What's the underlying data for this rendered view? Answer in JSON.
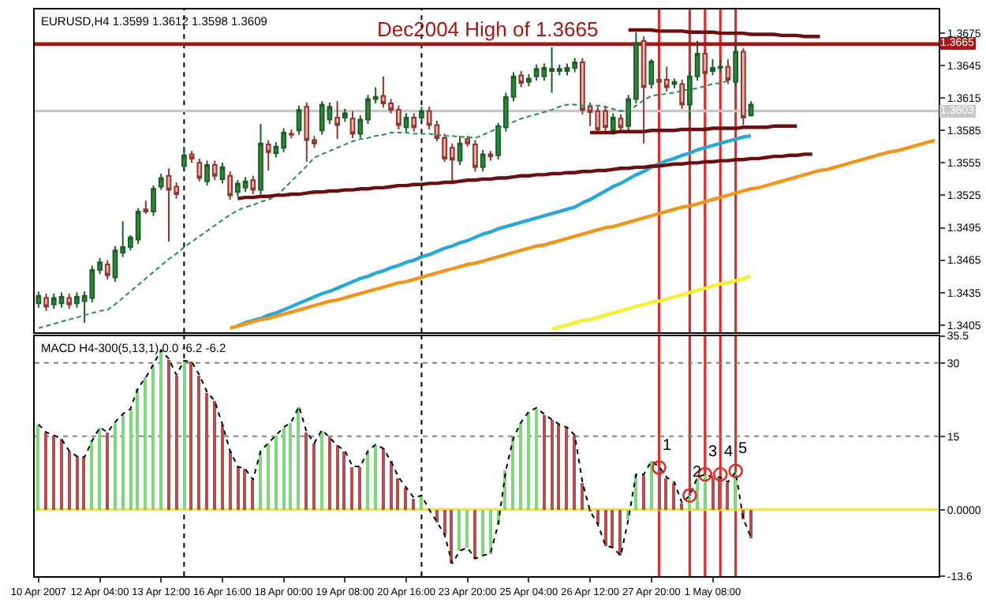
{
  "chart_data": [
    {
      "type": "candlestick",
      "title": "EURUSD,H4 1.3599 1.3612 1.3598 1.3609",
      "categories": [
        null,
        null,
        null,
        null,
        null,
        null,
        null,
        null,
        null,
        null,
        null,
        null,
        null,
        null,
        null,
        null,
        null,
        null,
        null,
        null,
        null,
        null,
        null,
        null,
        null,
        null,
        null,
        null,
        null,
        null,
        null,
        null,
        null,
        null,
        null,
        null,
        null,
        null,
        null,
        null,
        null,
        null,
        null,
        null,
        null,
        null,
        null,
        null,
        null,
        null,
        null,
        null,
        null,
        null,
        null,
        null,
        null,
        null,
        null,
        null,
        null,
        null,
        null,
        null,
        null,
        null,
        null,
        null,
        null,
        null,
        null,
        null,
        null,
        null,
        null,
        null,
        null,
        null,
        null,
        null,
        null,
        null,
        null,
        null,
        null,
        null,
        null,
        null,
        null,
        null,
        null,
        null,
        null,
        null,
        null,
        null,
        null,
        null,
        null,
        null,
        null,
        null,
        null,
        null,
        null,
        null,
        null,
        null,
        null,
        null,
        null,
        null,
        null,
        null,
        null,
        null,
        null,
        null
      ],
      "ohlc": [
        [
          1.3425,
          1.3436,
          1.3421,
          1.3432
        ],
        [
          1.343,
          1.3434,
          1.3418,
          1.3422
        ],
        [
          1.3424,
          1.3434,
          1.342,
          1.343
        ],
        [
          1.3425,
          1.3435,
          1.3421,
          1.3431
        ],
        [
          1.343,
          1.3434,
          1.342,
          1.3424
        ],
        [
          1.3425,
          1.3435,
          1.3421,
          1.3431
        ],
        [
          1.3427,
          1.3436,
          1.3407,
          1.3432
        ],
        [
          1.343,
          1.346,
          1.3426,
          1.3456
        ],
        [
          1.3456,
          1.3467,
          1.3452,
          1.3463
        ],
        [
          1.3461,
          1.3465,
          1.3447,
          1.3451
        ],
        [
          1.3449,
          1.3478,
          1.3445,
          1.3474
        ],
        [
          1.3472,
          1.3501,
          1.3468,
          1.3477
        ],
        [
          1.3477,
          1.3488,
          1.3474,
          1.3486
        ],
        [
          1.3484,
          1.3513,
          1.348,
          1.351
        ],
        [
          1.3512,
          1.352,
          1.3508,
          1.351
        ],
        [
          1.351,
          1.3534,
          1.3506,
          1.3531
        ],
        [
          1.3533,
          1.3545,
          1.353,
          1.3541
        ],
        [
          1.3543,
          1.355,
          1.3482,
          1.353
        ],
        [
          1.3533,
          1.3537,
          1.3522,
          1.3526
        ],
        [
          1.3552,
          1.357,
          1.3549,
          1.3562
        ],
        [
          1.3563,
          1.3566,
          1.3555,
          1.3559
        ],
        [
          1.3555,
          1.3559,
          1.3538,
          1.3541
        ],
        [
          1.3538,
          1.3557,
          1.3534,
          1.3553
        ],
        [
          1.3553,
          1.3557,
          1.3539,
          1.3543
        ],
        [
          1.354,
          1.3555,
          1.3536,
          1.3551
        ],
        [
          1.3543,
          1.3547,
          1.3521,
          1.3525
        ],
        [
          1.3528,
          1.3539,
          1.3524,
          1.3536
        ],
        [
          1.3532,
          1.3542,
          1.3528,
          1.3538
        ],
        [
          1.3539,
          1.3543,
          1.3526,
          1.353
        ],
        [
          1.353,
          1.3591,
          1.3526,
          1.3573
        ],
        [
          1.3572,
          1.3576,
          1.3548,
          1.3565
        ],
        [
          1.3564,
          1.3574,
          1.356,
          1.357
        ],
        [
          1.3569,
          1.3587,
          1.3565,
          1.3583
        ],
        [
          1.3582,
          1.3586,
          1.3578,
          1.3581
        ],
        [
          1.3585,
          1.3608,
          1.3581,
          1.3604
        ],
        [
          1.3607,
          1.3611,
          1.3556,
          1.3576
        ],
        [
          1.3576,
          1.358,
          1.3569,
          1.3573
        ],
        [
          1.3585,
          1.3612,
          1.3581,
          1.3609
        ],
        [
          1.3595,
          1.3611,
          1.3591,
          1.3607
        ],
        [
          1.3597,
          1.3612,
          1.3577,
          1.359
        ],
        [
          1.3597,
          1.3605,
          1.3593,
          1.3601
        ],
        [
          1.3596,
          1.3603,
          1.3578,
          1.3582
        ],
        [
          1.3582,
          1.3599,
          1.3578,
          1.3595
        ],
        [
          1.3595,
          1.3618,
          1.3591,
          1.3614
        ],
        [
          1.3614,
          1.3625,
          1.361,
          1.3616
        ],
        [
          1.3617,
          1.3635,
          1.3606,
          1.361
        ],
        [
          1.361,
          1.3614,
          1.3601,
          1.3604
        ],
        [
          1.3604,
          1.3608,
          1.3586,
          1.359
        ],
        [
          1.3588,
          1.3601,
          1.3584,
          1.3597
        ],
        [
          1.3597,
          1.3601,
          1.3584,
          1.3588
        ],
        [
          1.3597,
          1.3607,
          1.3593,
          1.3603
        ],
        [
          1.3603,
          1.3607,
          1.3586,
          1.359
        ],
        [
          1.359,
          1.3594,
          1.3575,
          1.3578
        ],
        [
          1.3578,
          1.3582,
          1.3556,
          1.3559
        ],
        [
          1.3569,
          1.3573,
          1.3538,
          1.3558
        ],
        [
          1.3557,
          1.358,
          1.3553,
          1.3573
        ],
        [
          1.3577,
          1.358,
          1.357,
          1.3573
        ],
        [
          1.3572,
          1.3576,
          1.3547,
          1.3551
        ],
        [
          1.3551,
          1.3567,
          1.3547,
          1.3563
        ],
        [
          1.3563,
          1.3566,
          1.3557,
          1.3561
        ],
        [
          1.3562,
          1.3592,
          1.3558,
          1.3589
        ],
        [
          1.3588,
          1.362,
          1.3584,
          1.3616
        ],
        [
          1.3616,
          1.3639,
          1.3612,
          1.3635
        ],
        [
          1.3636,
          1.364,
          1.3625,
          1.3629
        ],
        [
          1.363,
          1.3637,
          1.3626,
          1.3633
        ],
        [
          1.3635,
          1.3646,
          1.3631,
          1.3642
        ],
        [
          1.3635,
          1.3647,
          1.3631,
          1.3643
        ],
        [
          1.364,
          1.3662,
          1.362,
          1.3642
        ],
        [
          1.364,
          1.3646,
          1.3636,
          1.3642
        ],
        [
          1.364,
          1.3647,
          1.3636,
          1.3643
        ],
        [
          1.3643,
          1.3652,
          1.3639,
          1.3648
        ],
        [
          1.3648,
          1.3652,
          1.36,
          1.3604
        ],
        [
          1.3607,
          1.3611,
          1.3589,
          1.3602
        ],
        [
          1.3603,
          1.3607,
          1.3582,
          1.3586
        ],
        [
          1.3603,
          1.3607,
          1.3584,
          1.3588
        ],
        [
          1.3585,
          1.3601,
          1.3581,
          1.3597
        ],
        [
          1.3596,
          1.36,
          1.3584,
          1.3588
        ],
        [
          1.3589,
          1.3618,
          1.3585,
          1.3614
        ],
        [
          1.3614,
          1.3676,
          1.361,
          1.3666
        ],
        [
          1.3668,
          1.3672,
          1.3573,
          1.3625
        ],
        [
          1.3628,
          1.3651,
          1.3624,
          1.3649
        ],
        [
          1.3632,
          1.364,
          1.3626,
          1.363
        ],
        [
          1.3632,
          1.3644,
          1.3621,
          1.3625
        ],
        [
          1.3628,
          1.3633,
          1.3624,
          1.363
        ],
        [
          1.3628,
          1.3632,
          1.3605,
          1.3609
        ],
        [
          1.3609,
          1.364,
          1.3595,
          1.3635
        ],
        [
          1.3635,
          1.3668,
          1.3631,
          1.3656
        ],
        [
          1.3656,
          1.366,
          1.3634,
          1.3638
        ],
        [
          1.364,
          1.3651,
          1.3636,
          1.3643
        ],
        [
          1.3643,
          1.3651,
          1.3639,
          1.3644
        ],
        [
          1.3644,
          1.3651,
          1.3628,
          1.3632
        ],
        [
          1.363,
          1.3668,
          1.3626,
          1.3658
        ],
        [
          1.3658,
          1.3661,
          1.359,
          1.3597
        ],
        [
          1.3599,
          1.3612,
          1.3598,
          1.3609
        ],
        null,
        null,
        null,
        null,
        null,
        null,
        null,
        null,
        null,
        null,
        null,
        null,
        null,
        null,
        null,
        null,
        null,
        null,
        null,
        null,
        null,
        null,
        null,
        null
      ],
      "series": [
        {
          "type": "line",
          "line_style": "dashed",
          "color": "#2e8b57",
          "values": [
            1.3402,
            1.3404,
            1.3406,
            1.3408,
            1.341,
            1.3412,
            1.3414,
            1.3416,
            1.3418,
            1.3419,
            1.3424,
            1.343,
            1.3436,
            1.3442,
            1.3448,
            1.3454,
            1.346,
            1.3466,
            1.3471,
            1.3477,
            1.3482,
            1.3487,
            1.3492,
            1.3497,
            1.3502,
            1.3507,
            1.3511,
            1.3514,
            1.3516,
            1.3519,
            1.3521,
            1.3524,
            1.3531,
            1.3538,
            1.3545,
            1.3552,
            1.356,
            1.3563,
            1.3566,
            1.3569,
            1.3572,
            1.3575,
            1.3577,
            1.3578,
            1.358,
            1.3581,
            1.3583,
            1.3583,
            1.3583,
            1.3582,
            1.3582,
            1.3582,
            1.3581,
            1.358,
            1.358,
            1.3579,
            1.3579,
            1.3578,
            1.3581,
            1.3584,
            1.3587,
            1.359,
            1.3593,
            1.3596,
            1.3598,
            1.36,
            1.3602,
            1.3604,
            1.3607,
            1.3609,
            1.3609,
            1.3608,
            1.3608,
            1.3608,
            1.3607,
            1.3605,
            1.3603,
            1.3603,
            1.3608,
            1.3613,
            1.3617,
            1.3618,
            1.3619,
            1.362,
            1.3622,
            1.3623,
            1.3624,
            1.3626,
            1.3628,
            1.3629,
            1.3631,
            null,
            null,
            null,
            null,
            null,
            null,
            null,
            null,
            null,
            null,
            null,
            null,
            null,
            null,
            null,
            null,
            null,
            null,
            null,
            null,
            null,
            null,
            null,
            null,
            null,
            null,
            null
          ]
        },
        {
          "type": "line",
          "line_style": "solid",
          "color": "#29a8d8",
          "values": [
            null,
            null,
            null,
            null,
            null,
            null,
            null,
            null,
            null,
            null,
            null,
            null,
            null,
            null,
            null,
            null,
            null,
            null,
            null,
            null,
            null,
            null,
            null,
            null,
            null,
            null,
            1.3404,
            1.3407,
            1.3409,
            1.3411,
            1.3414,
            1.3416,
            1.3419,
            1.3422,
            1.3425,
            1.3428,
            1.3431,
            1.3434,
            1.3436,
            1.3439,
            1.3442,
            1.3445,
            1.3448,
            1.345,
            1.3453,
            1.3455,
            1.3458,
            1.346,
            1.3463,
            1.3465,
            1.3468,
            1.347,
            1.3473,
            1.3476,
            1.3478,
            1.3481,
            1.3483,
            1.3486,
            1.3489,
            1.3491,
            1.3494,
            1.3496,
            1.3498,
            1.35,
            1.3502,
            1.3504,
            1.3506,
            1.3508,
            1.351,
            1.3512,
            1.3514,
            1.3518,
            1.3521,
            1.3525,
            1.3529,
            1.3533,
            1.3536,
            1.354,
            1.3544,
            1.3547,
            1.3551,
            1.3554,
            1.3557,
            1.3559,
            1.3562,
            1.3564,
            1.3567,
            1.3569,
            1.3571,
            1.3573,
            1.3575,
            1.3577,
            1.3579,
            1.358,
            null,
            null,
            null,
            null,
            null,
            null,
            null,
            null,
            null,
            null,
            null,
            null,
            null,
            null,
            null,
            null,
            null,
            null,
            null,
            null,
            null,
            null,
            null,
            null
          ]
        },
        {
          "type": "line",
          "line_style": "solid",
          "color": "#f0961e",
          "values": [
            null,
            null,
            null,
            null,
            null,
            null,
            null,
            null,
            null,
            null,
            null,
            null,
            null,
            null,
            null,
            null,
            null,
            null,
            null,
            null,
            null,
            null,
            null,
            null,
            null,
            1.3402,
            1.3404,
            1.3406,
            1.3408,
            1.341,
            1.3411,
            1.3413,
            1.3415,
            1.3417,
            1.3419,
            1.3421,
            1.3423,
            1.3425,
            1.3427,
            1.3428,
            1.343,
            1.3432,
            1.3434,
            1.3436,
            1.3438,
            1.344,
            1.3442,
            1.3444,
            1.3445,
            1.3447,
            1.3449,
            1.3451,
            1.3453,
            1.3455,
            1.3457,
            1.3459,
            1.3461,
            1.3462,
            1.3464,
            1.3466,
            1.3468,
            1.347,
            1.3472,
            1.3474,
            1.3476,
            1.3478,
            1.3479,
            1.3481,
            1.3483,
            1.3485,
            1.3487,
            1.3489,
            1.3491,
            1.3493,
            1.3495,
            1.3496,
            1.3498,
            1.35,
            1.3502,
            1.3504,
            1.3506,
            1.3508,
            1.351,
            1.3512,
            1.3514,
            1.3515,
            1.3517,
            1.3519,
            1.3521,
            1.3523,
            1.3525,
            1.3527,
            1.3529,
            1.3531,
            1.3532,
            1.3534,
            1.3536,
            1.3538,
            1.354,
            1.3542,
            1.3544,
            1.3546,
            1.3548,
            1.3549,
            1.3551,
            1.3553,
            1.3555,
            1.3557,
            1.3559,
            1.3561,
            1.3563,
            1.3565,
            1.3566,
            1.3568,
            1.357,
            1.3572,
            1.3574,
            1.3576
          ]
        },
        {
          "type": "line",
          "line_style": "solid",
          "color": "#f5f032",
          "values": [
            null,
            null,
            null,
            null,
            null,
            null,
            null,
            null,
            null,
            null,
            null,
            null,
            null,
            null,
            null,
            null,
            null,
            null,
            null,
            null,
            null,
            null,
            null,
            null,
            null,
            null,
            null,
            null,
            null,
            null,
            null,
            null,
            null,
            null,
            null,
            null,
            null,
            null,
            null,
            null,
            null,
            null,
            null,
            null,
            null,
            null,
            null,
            null,
            null,
            null,
            null,
            null,
            null,
            null,
            null,
            null,
            null,
            null,
            null,
            null,
            null,
            null,
            null,
            null,
            null,
            null,
            null,
            1.3401,
            1.3403,
            1.3405,
            1.3407,
            1.3409,
            1.341,
            1.3412,
            1.3414,
            1.3416,
            1.3418,
            1.342,
            1.3422,
            1.3424,
            1.3426,
            1.3427,
            1.3429,
            1.3431,
            1.3433,
            1.3435,
            1.3437,
            1.3439,
            1.3441,
            1.3443,
            1.3444,
            1.3446,
            1.3448,
            1.345,
            null,
            null,
            null,
            null,
            null,
            null,
            null,
            null,
            null,
            null,
            null,
            null,
            null,
            null,
            null,
            null,
            null,
            null,
            null,
            null,
            null,
            null,
            null,
            null
          ]
        },
        {
          "type": "line",
          "line_style": "solid",
          "color": "#6b1010",
          "values": [
            null,
            null,
            null,
            null,
            null,
            null,
            null,
            null,
            null,
            null,
            null,
            null,
            null,
            null,
            null,
            null,
            null,
            null,
            null,
            null,
            null,
            null,
            null,
            null,
            null,
            null,
            1.3522,
            1.3523,
            1.3523,
            1.3524,
            1.3524,
            1.3525,
            1.3525,
            1.3526,
            1.3526,
            1.3527,
            1.3528,
            1.3528,
            1.3529,
            1.3529,
            1.353,
            1.353,
            1.3531,
            1.3531,
            1.3532,
            1.3532,
            1.3533,
            1.3534,
            1.3534,
            1.3535,
            1.3535,
            1.3536,
            1.3536,
            1.3537,
            1.3537,
            1.3538,
            1.3539,
            1.3539,
            1.354,
            1.354,
            1.3541,
            1.3541,
            1.3542,
            1.3543,
            1.3543,
            1.3544,
            1.3544,
            1.3545,
            1.3545,
            1.3546,
            1.3546,
            1.3547,
            1.3547,
            1.3548,
            1.3548,
            1.3549,
            1.355,
            1.355,
            1.3551,
            1.3551,
            1.3552,
            1.3552,
            1.3553,
            1.3554,
            1.3554,
            1.3555,
            1.3555,
            1.3556,
            1.3556,
            1.3557,
            1.3557,
            1.3558,
            1.3558,
            1.3559,
            1.3559,
            1.356,
            1.3561,
            1.3561,
            1.3562,
            1.3562,
            1.3563,
            1.3563,
            null,
            null,
            null,
            null,
            null,
            null,
            null,
            null,
            null,
            null,
            null,
            null,
            null,
            null,
            null,
            null
          ]
        },
        {
          "type": "line",
          "line_style": "solid",
          "color": "#6b1010",
          "values": [
            null,
            null,
            null,
            null,
            null,
            null,
            null,
            null,
            null,
            null,
            null,
            null,
            null,
            null,
            null,
            null,
            null,
            null,
            null,
            null,
            null,
            null,
            null,
            null,
            null,
            null,
            null,
            null,
            null,
            null,
            null,
            null,
            null,
            null,
            null,
            null,
            null,
            null,
            null,
            null,
            null,
            null,
            null,
            null,
            null,
            null,
            null,
            null,
            null,
            null,
            null,
            null,
            null,
            null,
            null,
            null,
            null,
            null,
            null,
            null,
            null,
            null,
            null,
            null,
            null,
            null,
            null,
            null,
            null,
            null,
            null,
            null,
            null,
            null,
            null,
            null,
            null,
            1.3678,
            1.3678,
            1.3678,
            1.3678,
            1.3677,
            1.3677,
            1.3677,
            1.3677,
            1.3676,
            1.3676,
            1.3676,
            1.3676,
            1.3675,
            1.3675,
            1.3675,
            1.3675,
            1.3674,
            1.3674,
            1.3674,
            1.3674,
            1.3673,
            1.3673,
            1.3673,
            1.3672,
            1.3672,
            1.3672,
            null,
            null,
            null,
            null,
            null,
            null,
            null,
            null,
            null,
            null,
            null,
            null,
            null,
            null,
            null
          ]
        },
        {
          "type": "line",
          "line_style": "solid",
          "color": "#6b1010",
          "values": [
            null,
            null,
            null,
            null,
            null,
            null,
            null,
            null,
            null,
            null,
            null,
            null,
            null,
            null,
            null,
            null,
            null,
            null,
            null,
            null,
            null,
            null,
            null,
            null,
            null,
            null,
            null,
            null,
            null,
            null,
            null,
            null,
            null,
            null,
            null,
            null,
            null,
            null,
            null,
            null,
            null,
            null,
            null,
            null,
            null,
            null,
            null,
            null,
            null,
            null,
            null,
            null,
            null,
            null,
            null,
            null,
            null,
            null,
            null,
            null,
            null,
            null,
            null,
            null,
            null,
            null,
            null,
            null,
            null,
            null,
            null,
            null,
            1.3583,
            1.3583,
            1.3583,
            1.3583,
            1.3584,
            1.3584,
            1.3584,
            1.3584,
            1.3585,
            1.3585,
            1.3585,
            1.3585,
            1.3586,
            1.3586,
            1.3586,
            1.3586,
            1.3587,
            1.3587,
            1.3587,
            1.3587,
            1.3588,
            1.3588,
            1.3588,
            1.3588,
            1.3589,
            1.3589,
            1.3589,
            1.3589,
            null,
            null,
            null,
            null,
            null,
            null,
            null,
            null,
            null,
            null,
            null,
            null,
            null,
            null,
            null,
            null,
            null,
            null
          ]
        }
      ],
      "ref_lines": [
        {
          "axis": "y",
          "value": 1.3665,
          "label": "Dec2004 High of 1.3665",
          "color": "#a01818"
        },
        {
          "axis": "y",
          "value": 1.3603,
          "color": "#c8c8c8"
        }
      ],
      "annotations": [
        {
          "text": "1.3665",
          "y": 1.3665
        },
        {
          "text": "1.3603",
          "y": 1.3603
        }
      ],
      "ylim": [
        1.3398,
        1.3697
      ],
      "yticks": [
        1.3675,
        1.3645,
        1.3615,
        1.3585,
        1.3555,
        1.3525,
        1.3495,
        1.3465,
        1.3435,
        1.3405
      ],
      "tick_labels": "y",
      "grid": "x"
    },
    {
      "type": "bar",
      "title": "MACD H4-300(5,13,1) 0.0 -6.2 -6.2",
      "categories": [
        "10 Apr 2007",
        null,
        null,
        null,
        null,
        null,
        null,
        null,
        "12 Apr 04:00",
        null,
        null,
        null,
        null,
        null,
        null,
        null,
        "13 Apr 12:00",
        null,
        null,
        null,
        null,
        null,
        null,
        null,
        "16 Apr 16:00",
        null,
        null,
        null,
        null,
        null,
        null,
        null,
        "18 Apr 00:00",
        null,
        null,
        null,
        null,
        null,
        null,
        null,
        "19 Apr 08:00",
        null,
        null,
        null,
        null,
        null,
        null,
        null,
        "20 Apr 16:00",
        null,
        null,
        null,
        null,
        null,
        null,
        null,
        "23 Apr 20:00",
        null,
        null,
        null,
        null,
        null,
        null,
        null,
        "25 Apr 04:00",
        null,
        null,
        null,
        null,
        null,
        null,
        null,
        "26 Apr 12:00",
        null,
        null,
        null,
        null,
        null,
        null,
        null,
        "27 Apr 20:00",
        null,
        null,
        null,
        null,
        null,
        null,
        null,
        "1 May 08:00",
        null,
        null,
        null,
        null,
        null,
        null,
        null,
        null,
        null,
        null,
        null,
        null,
        null,
        null,
        null,
        null,
        null,
        null,
        null,
        null,
        null,
        null,
        null,
        null,
        null,
        null,
        null,
        null,
        null
      ],
      "values": [
        17.4,
        15.8,
        15.2,
        14.4,
        12.0,
        10.9,
        10.7,
        14.1,
        16.8,
        15.8,
        17.9,
        19.5,
        20.6,
        24.9,
        27.0,
        29.7,
        32.6,
        30.8,
        27.5,
        30.4,
        30.2,
        27.5,
        24.0,
        22.2,
        17.4,
        12.0,
        8.8,
        8.3,
        6.1,
        12.0,
        13.6,
        15.2,
        16.8,
        17.9,
        21.1,
        15.8,
        13.6,
        16.3,
        14.7,
        13.1,
        12.0,
        8.8,
        8.8,
        12.0,
        13.3,
        12.5,
        9.9,
        6.6,
        4.5,
        2.4,
        2.9,
        0.0,
        -2.5,
        -5.1,
        -11.0,
        -8.4,
        -7.8,
        -10.0,
        -9.4,
        -8.9,
        -3.0,
        8.0,
        14.7,
        17.9,
        20.0,
        20.8,
        19.5,
        18.4,
        17.4,
        16.8,
        15.2,
        5.6,
        -0.3,
        -3.0,
        -7.3,
        -7.8,
        -9.4,
        -1.9,
        7.2,
        7.2,
        9.9,
        8.8,
        6.6,
        5.6,
        1.3,
        2.9,
        6.6,
        7.2,
        6.6,
        6.6,
        5.6,
        7.7,
        -1.9,
        -5.7,
        null,
        null,
        null,
        null,
        null,
        null,
        null,
        null,
        null,
        null,
        null,
        null,
        null,
        null,
        null,
        null,
        null,
        null,
        null,
        null,
        null,
        null,
        null,
        null
      ],
      "colors": [
        "#7fd87f",
        "#b05050",
        "#b05050",
        "#b05050",
        "#b05050",
        "#b05050",
        "#b05050",
        "#7fd87f",
        "#7fd87f",
        "#b05050",
        "#7fd87f",
        "#7fd87f",
        "#7fd87f",
        "#7fd87f",
        "#7fd87f",
        "#7fd87f",
        "#7fd87f",
        "#b05050",
        "#b05050",
        "#7fd87f",
        "#b05050",
        "#b05050",
        "#b05050",
        "#b05050",
        "#b05050",
        "#b05050",
        "#b05050",
        "#b05050",
        "#b05050",
        "#7fd87f",
        "#7fd87f",
        "#7fd87f",
        "#7fd87f",
        "#7fd87f",
        "#7fd87f",
        "#b05050",
        "#b05050",
        "#7fd87f",
        "#b05050",
        "#b05050",
        "#b05050",
        "#b05050",
        "#b05050",
        "#7fd87f",
        "#7fd87f",
        "#b05050",
        "#b05050",
        "#b05050",
        "#b05050",
        "#b05050",
        "#7fd87f",
        "#b05050",
        "#b05050",
        "#b05050",
        "#b05050",
        "#7fd87f",
        "#7fd87f",
        "#b05050",
        "#7fd87f",
        "#7fd87f",
        "#7fd87f",
        "#7fd87f",
        "#7fd87f",
        "#7fd87f",
        "#7fd87f",
        "#7fd87f",
        "#b05050",
        "#b05050",
        "#b05050",
        "#b05050",
        "#b05050",
        "#b05050",
        "#b05050",
        "#b05050",
        "#b05050",
        "#b05050",
        "#b05050",
        "#7fd87f",
        "#7fd87f",
        "#b05050",
        "#7fd87f",
        "#b05050",
        "#b05050",
        "#b05050",
        "#b05050",
        "#7fd87f",
        "#7fd87f",
        "#7fd87f",
        "#b05050",
        "#b05050",
        "#b05050",
        "#7fd87f",
        "#b05050",
        "#b05050",
        null,
        null,
        null,
        null,
        null,
        null,
        null,
        null,
        null,
        null,
        null,
        null,
        null,
        null,
        null,
        null,
        null,
        null,
        null,
        null,
        null,
        null,
        null,
        null
      ],
      "series": [
        {
          "type": "line",
          "line_style": "dotted",
          "color": "#000000",
          "values": [
            17.4,
            15.8,
            15.2,
            14.4,
            12.0,
            10.9,
            10.7,
            14.1,
            16.8,
            15.8,
            17.9,
            19.5,
            20.6,
            24.9,
            27.0,
            29.7,
            32.6,
            30.8,
            27.5,
            30.4,
            30.2,
            27.5,
            24.0,
            22.2,
            17.4,
            12.0,
            8.8,
            8.3,
            6.1,
            12.0,
            13.6,
            15.2,
            16.8,
            17.9,
            21.1,
            15.8,
            13.6,
            16.3,
            14.7,
            13.1,
            12.0,
            8.8,
            8.8,
            12.0,
            13.3,
            12.5,
            9.9,
            6.6,
            4.5,
            2.4,
            2.9,
            0.0,
            -2.5,
            -5.1,
            -11.0,
            -8.4,
            -7.8,
            -10.0,
            -9.4,
            -8.9,
            -3.0,
            8.0,
            14.7,
            17.9,
            20.0,
            20.8,
            19.5,
            18.4,
            17.4,
            16.8,
            15.2,
            5.6,
            -0.3,
            -3.0,
            -7.3,
            -7.8,
            -9.4,
            -1.9,
            7.2,
            7.2,
            9.9,
            8.8,
            6.6,
            5.6,
            1.3,
            2.9,
            6.6,
            7.2,
            6.6,
            6.6,
            5.6,
            7.7,
            -1.9,
            -5.7,
            null,
            null,
            null,
            null,
            null,
            null,
            null,
            null,
            null,
            null,
            null,
            null,
            null,
            null,
            null,
            null,
            null,
            null,
            null,
            null,
            null,
            null,
            null,
            null
          ]
        },
        {
          "type": "scatter",
          "marker": "circle",
          "color": "#d83030",
          "values": [
            null,
            null,
            null,
            null,
            null,
            null,
            null,
            null,
            null,
            null,
            null,
            null,
            null,
            null,
            null,
            null,
            null,
            null,
            null,
            null,
            null,
            null,
            null,
            null,
            null,
            null,
            null,
            null,
            null,
            null,
            null,
            null,
            null,
            null,
            null,
            null,
            null,
            null,
            null,
            null,
            null,
            null,
            null,
            null,
            null,
            null,
            null,
            null,
            null,
            null,
            null,
            null,
            null,
            null,
            null,
            null,
            null,
            null,
            null,
            null,
            null,
            null,
            null,
            null,
            null,
            null,
            null,
            null,
            null,
            null,
            null,
            null,
            null,
            null,
            null,
            null,
            null,
            null,
            null,
            null,
            null,
            8.6,
            null,
            null,
            null,
            2.9,
            null,
            7.2,
            null,
            7.2,
            null,
            7.9,
            null,
            null,
            null,
            null,
            null,
            null,
            null,
            null,
            null,
            null,
            null,
            null,
            null,
            null,
            null,
            null,
            null,
            null,
            null,
            null,
            null,
            null,
            null,
            null,
            null,
            null
          ]
        }
      ],
      "ref_lines": [
        {
          "axis": "y",
          "value": 30,
          "color": "#808080",
          "line_style": "dotted"
        },
        {
          "axis": "y",
          "value": 15,
          "color": "#808080",
          "line_style": "dotted"
        },
        {
          "axis": "y",
          "value": 0,
          "color": "#f0e060"
        }
      ],
      "annotations": [
        {
          "text": "1",
          "y": 8.6
        },
        {
          "text": "2",
          "y": 2.9
        },
        {
          "text": "3",
          "y": 7.2
        },
        {
          "text": "4",
          "y": 7.2
        },
        {
          "text": "5",
          "y": 7.9
        }
      ],
      "ylim": [
        -13.6,
        35.5
      ],
      "grid": "x",
      "yticks": [
        35.5,
        30,
        15,
        {
          "value": 0,
          "label": "0.0000"
        },
        -13.6
      ]
    }
  ]
}
